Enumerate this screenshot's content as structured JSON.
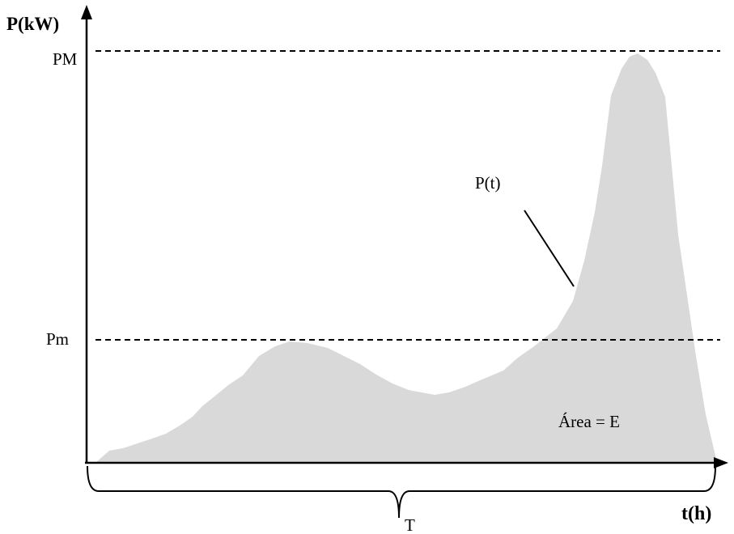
{
  "diagram": {
    "y_axis_label": "P(kW)",
    "x_axis_label": "t(h)",
    "max_level_label": "PM",
    "min_level_label": "Pm",
    "curve_label": "P(t)",
    "area_label": "Área = E",
    "period_label": "T"
  },
  "colors": {
    "area_fill": "#d9d9d9",
    "axis": "#000000",
    "text": "#000000"
  }
}
